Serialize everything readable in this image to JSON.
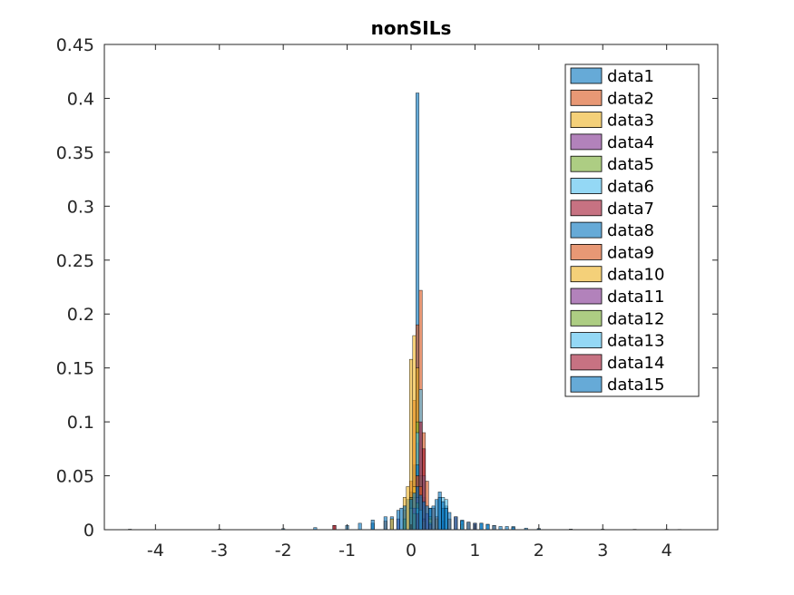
{
  "chart_data": {
    "type": "bar",
    "title": "nonSILs",
    "xlabel": "",
    "ylabel": "",
    "xlim": [
      -4.8,
      4.8
    ],
    "ylim": [
      0,
      0.45
    ],
    "xticks": [
      -4,
      -3,
      -2,
      -1,
      0,
      1,
      2,
      3,
      4
    ],
    "xtick_labels": [
      "-4",
      "-3",
      "-2",
      "-1",
      "0",
      "1",
      "2",
      "3",
      "4"
    ],
    "yticks": [
      0,
      0.05,
      0.1,
      0.15,
      0.2,
      0.25,
      0.3,
      0.35,
      0.4,
      0.45
    ],
    "ytick_labels": [
      "0",
      "0.05",
      "0.1",
      "0.15",
      "0.2",
      "0.25",
      "0.3",
      "0.35",
      "0.4",
      "0.45"
    ],
    "legend_position": "top-right",
    "grid": false,
    "bin_width": 0.05,
    "series": [
      {
        "name": "data1",
        "color": "#0072BD",
        "values": [
          [
            -1.2,
            0.004
          ],
          [
            -0.6,
            0.006
          ],
          [
            -0.3,
            0.012
          ],
          [
            -0.15,
            0.02
          ],
          [
            -0.05,
            0.028
          ],
          [
            0.0,
            0.035
          ],
          [
            0.05,
            0.06
          ],
          [
            0.1,
            0.405
          ],
          [
            0.15,
            0.05
          ],
          [
            0.2,
            0.03
          ],
          [
            0.3,
            0.02
          ],
          [
            0.45,
            0.035
          ],
          [
            0.55,
            0.022
          ],
          [
            0.8,
            0.008
          ],
          [
            1.2,
            0.005
          ],
          [
            1.6,
            0.003
          ],
          [
            2.0,
            0.001
          ]
        ]
      },
      {
        "name": "data2",
        "color": "#D95319",
        "values": [
          [
            -1.2,
            0.004
          ],
          [
            -0.4,
            0.008
          ],
          [
            -0.1,
            0.018
          ],
          [
            0.0,
            0.045
          ],
          [
            0.05,
            0.12
          ],
          [
            0.1,
            0.19
          ],
          [
            0.15,
            0.222
          ],
          [
            0.2,
            0.09
          ],
          [
            0.25,
            0.045
          ],
          [
            0.35,
            0.02
          ],
          [
            0.6,
            0.01
          ],
          [
            0.9,
            0.007
          ],
          [
            1.3,
            0.004
          ]
        ]
      },
      {
        "name": "data3",
        "color": "#EDB120",
        "values": [
          [
            -0.3,
            0.01
          ],
          [
            -0.1,
            0.03
          ],
          [
            -0.05,
            0.04
          ],
          [
            0.0,
            0.158
          ],
          [
            0.05,
            0.18
          ],
          [
            0.1,
            0.15
          ],
          [
            0.15,
            0.05
          ],
          [
            0.2,
            0.02
          ],
          [
            0.4,
            0.01
          ],
          [
            0.8,
            0.005
          ]
        ]
      },
      {
        "name": "data4",
        "color": "#7E2F8E",
        "values": [
          [
            -0.2,
            0.01
          ],
          [
            0.0,
            0.03
          ],
          [
            0.1,
            0.08
          ],
          [
            0.15,
            0.04
          ],
          [
            0.25,
            0.015
          ],
          [
            0.5,
            0.008
          ]
        ]
      },
      {
        "name": "data5",
        "color": "#77AC30",
        "values": [
          [
            -0.1,
            0.01
          ],
          [
            0.0,
            0.03
          ],
          [
            0.1,
            0.1
          ],
          [
            0.15,
            0.05
          ],
          [
            0.3,
            0.012
          ]
        ]
      },
      {
        "name": "data6",
        "color": "#4DBEEE",
        "values": [
          [
            0.0,
            0.02
          ],
          [
            0.1,
            0.09
          ],
          [
            0.15,
            0.13
          ],
          [
            0.2,
            0.05
          ],
          [
            0.5,
            0.03
          ],
          [
            0.55,
            0.028
          ],
          [
            0.8,
            0.008
          ]
        ]
      },
      {
        "name": "data7",
        "color": "#A2142F",
        "values": [
          [
            -1.2,
            0.004
          ],
          [
            0.1,
            0.05
          ],
          [
            0.15,
            0.1
          ],
          [
            0.2,
            0.075
          ],
          [
            0.7,
            0.012
          ],
          [
            1.0,
            0.006
          ]
        ]
      },
      {
        "name": "data8",
        "color": "#0072BD",
        "values": [
          [
            0.0,
            0.02
          ],
          [
            0.1,
            0.06
          ],
          [
            0.15,
            0.03
          ],
          [
            0.5,
            0.02
          ],
          [
            1.1,
            0.006
          ]
        ]
      },
      {
        "name": "data9",
        "color": "#D95319",
        "values": [
          [
            0.05,
            0.03
          ],
          [
            0.1,
            0.05
          ],
          [
            0.15,
            0.04
          ],
          [
            0.4,
            0.012
          ]
        ]
      },
      {
        "name": "data10",
        "color": "#EDB120",
        "values": [
          [
            0.0,
            0.02
          ],
          [
            0.05,
            0.04
          ],
          [
            0.1,
            0.03
          ],
          [
            0.3,
            0.01
          ]
        ]
      },
      {
        "name": "data11",
        "color": "#7E2F8E",
        "values": [
          [
            0.05,
            0.02
          ],
          [
            0.1,
            0.03
          ],
          [
            0.2,
            0.01
          ]
        ]
      },
      {
        "name": "data12",
        "color": "#77AC30",
        "values": [
          [
            0.05,
            0.015
          ],
          [
            0.1,
            0.025
          ],
          [
            0.2,
            0.008
          ]
        ]
      },
      {
        "name": "data13",
        "color": "#4DBEEE",
        "values": [
          [
            0.1,
            0.02
          ],
          [
            0.15,
            0.018
          ],
          [
            0.3,
            0.006
          ]
        ]
      },
      {
        "name": "data14",
        "color": "#A2142F",
        "values": [
          [
            0.1,
            0.015
          ],
          [
            0.2,
            0.01
          ],
          [
            0.3,
            0.005
          ]
        ]
      },
      {
        "name": "data15",
        "color": "#0072BD",
        "values": [
          [
            -4.4,
            0.0005
          ],
          [
            -3.0,
            0.0005
          ],
          [
            -2.0,
            0.001
          ],
          [
            -1.5,
            0.002
          ],
          [
            -1.0,
            0.004
          ],
          [
            -0.8,
            0.006
          ],
          [
            -0.6,
            0.009
          ],
          [
            -0.4,
            0.012
          ],
          [
            -0.2,
            0.018
          ],
          [
            -0.1,
            0.022
          ],
          [
            0.0,
            0.028
          ],
          [
            0.05,
            0.034
          ],
          [
            0.1,
            0.04
          ],
          [
            0.15,
            0.032
          ],
          [
            0.2,
            0.026
          ],
          [
            0.25,
            0.022
          ],
          [
            0.3,
            0.02
          ],
          [
            0.35,
            0.022
          ],
          [
            0.4,
            0.028
          ],
          [
            0.45,
            0.03
          ],
          [
            0.5,
            0.026
          ],
          [
            0.55,
            0.02
          ],
          [
            0.6,
            0.016
          ],
          [
            0.7,
            0.012
          ],
          [
            0.8,
            0.009
          ],
          [
            0.9,
            0.007
          ],
          [
            1.0,
            0.006
          ],
          [
            1.1,
            0.006
          ],
          [
            1.2,
            0.005
          ],
          [
            1.3,
            0.004
          ],
          [
            1.4,
            0.003
          ],
          [
            1.5,
            0.003
          ],
          [
            1.6,
            0.002
          ],
          [
            1.8,
            0.0015
          ],
          [
            2.0,
            0.001
          ],
          [
            2.5,
            0.0006
          ],
          [
            3.0,
            0.0005
          ],
          [
            3.5,
            0.0004
          ],
          [
            4.0,
            0.0004
          ],
          [
            4.2,
            0.0003
          ]
        ]
      }
    ]
  }
}
